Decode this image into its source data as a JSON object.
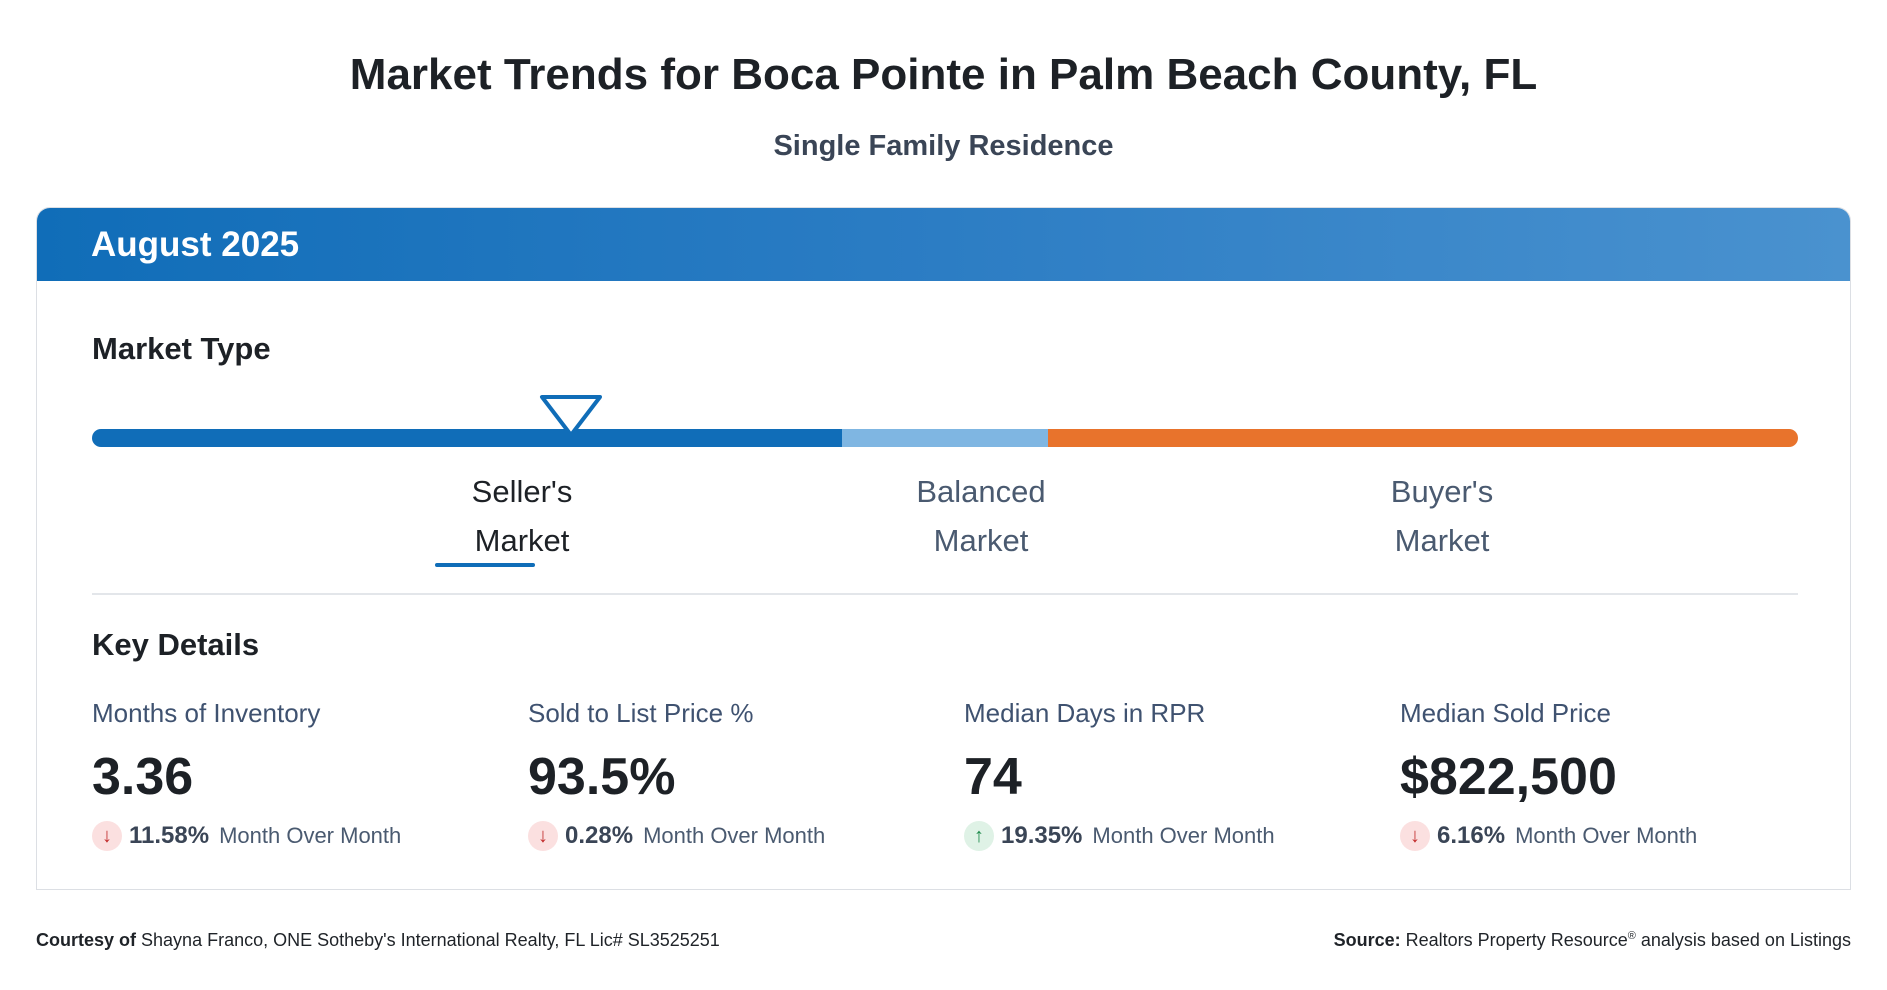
{
  "header": {
    "title": "Market Trends for Boca Pointe in Palm Beach County, FL",
    "subtitle": "Single Family Residence"
  },
  "card": {
    "period": "August 2025",
    "market_type": {
      "title": "Market Type",
      "selected": "seller",
      "labels": {
        "seller_line1": "Seller's",
        "seller_line2": "Market",
        "balanced_line1": "Balanced",
        "balanced_line2": "Market",
        "buyer_line1": "Buyer's",
        "buyer_line2": "Market"
      },
      "colors": {
        "seller": "#106db8",
        "balanced": "#7fb6e2",
        "buyer": "#e8732c"
      }
    },
    "key_details": {
      "title": "Key Details",
      "metrics": [
        {
          "label": "Months of Inventory",
          "value": "3.36",
          "direction": "down",
          "change": "11.58%",
          "period": "Month Over Month"
        },
        {
          "label": "Sold to List Price %",
          "value": "93.5%",
          "direction": "down",
          "change": "0.28%",
          "period": "Month Over Month"
        },
        {
          "label": "Median Days in RPR",
          "value": "74",
          "direction": "up",
          "change": "19.35%",
          "period": "Month Over Month"
        },
        {
          "label": "Median Sold Price",
          "value": "$822,500",
          "direction": "down",
          "change": "6.16%",
          "period": "Month Over Month"
        }
      ]
    }
  },
  "footer": {
    "courtesy_label": "Courtesy of",
    "courtesy_text": "Shayna Franco, ONE Sotheby's International Realty, FL Lic# SL3525251",
    "source_label": "Source:",
    "source_text_1": "Realtors Property Resource",
    "source_reg": "®",
    "source_text_2": "analysis based on Listings"
  }
}
